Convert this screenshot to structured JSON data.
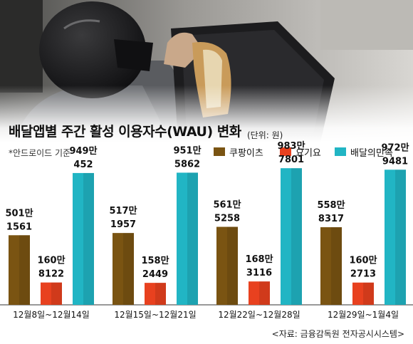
{
  "title": "배달앱별 주간 활성 이용자수(WAU) 변화",
  "unit": "(단위: 원)",
  "note": "*안드로이드 기준",
  "source": "<자료: 금융감독원 전자공시시스템>",
  "colors": {
    "coupang": "#7a5412",
    "yogiyo": "#e8411f",
    "baemin": "#21b5c4"
  },
  "chart_data": {
    "type": "bar",
    "categories": [
      "12월8일~12월14일",
      "12월15일~12월21일",
      "12월22일~12월28일",
      "12월29일~1월4일"
    ],
    "series": [
      {
        "name": "쿠팡이츠",
        "values": [
          5011561,
          5171957,
          5615258,
          5588317
        ],
        "labels_top": [
          "501만",
          "517만",
          "561만",
          "558만"
        ],
        "labels_bottom": [
          "1561",
          "1957",
          "5258",
          "8317"
        ]
      },
      {
        "name": "요기요",
        "values": [
          1608122,
          1582449,
          1683116,
          1602713
        ],
        "labels_top": [
          "160만",
          "158만",
          "168만",
          "160만"
        ],
        "labels_bottom": [
          "8122",
          "2449",
          "3116",
          "2713"
        ]
      },
      {
        "name": "배달의민족",
        "values": [
          9490452,
          9515862,
          9837801,
          9729481
        ],
        "labels_top": [
          "949만",
          "951만",
          "983만",
          "972만"
        ],
        "labels_bottom": [
          "452",
          "5862",
          "7801",
          "9481"
        ]
      }
    ],
    "ylim": [
      0,
      10000000
    ],
    "legend": "top-right"
  }
}
